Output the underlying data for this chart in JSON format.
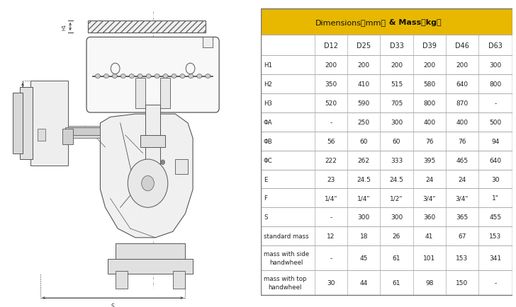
{
  "title_bg": "#E8B800",
  "header_row": [
    "",
    "D12",
    "D25",
    "D33",
    "D39",
    "D46",
    "D63"
  ],
  "rows": [
    [
      "H1",
      "200",
      "200",
      "200",
      "200",
      "200",
      "300"
    ],
    [
      "H2",
      "350",
      "410",
      "515",
      "580",
      "640",
      "800"
    ],
    [
      "H3",
      "520",
      "590",
      "705",
      "800",
      "870",
      "-"
    ],
    [
      "ΦA",
      "-",
      "250",
      "300",
      "400",
      "400",
      "500"
    ],
    [
      "ΦB",
      "56",
      "60",
      "60",
      "76",
      "76",
      "94"
    ],
    [
      "ΦC",
      "222",
      "262",
      "333",
      "395",
      "465",
      "640"
    ],
    [
      "E",
      "23",
      "24.5",
      "24.5",
      "24",
      "24",
      "30"
    ],
    [
      "F",
      "1/4\"",
      "1/4\"",
      "1/2\"",
      "3/4\"",
      "3/4\"",
      "1\""
    ],
    [
      "S",
      "-",
      "300",
      "300",
      "360",
      "365",
      "455"
    ],
    [
      "standard mass",
      "12",
      "18",
      "26",
      "41",
      "67",
      "153"
    ],
    [
      "mass with side\nhandwheel",
      "-",
      "45",
      "61",
      "101",
      "153",
      "341"
    ],
    [
      "mass with top\nhandwheel",
      "30",
      "44",
      "61",
      "98",
      "150",
      "-"
    ]
  ],
  "bg_color": "#ffffff",
  "line_color": "#aaaaaa",
  "text_color": "#222222"
}
